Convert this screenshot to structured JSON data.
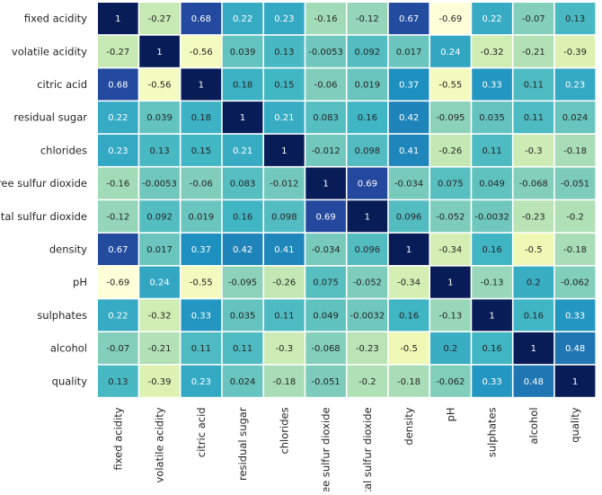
{
  "chart_data": {
    "type": "heatmap",
    "title": "",
    "xlabel": "",
    "ylabel": "",
    "colormap": "YlGnBu",
    "vmin": -0.69,
    "vmax": 1,
    "colorbar": false,
    "grid": false,
    "categories": [
      "fixed acidity",
      "volatile acidity",
      "citric acid",
      "residual sugar",
      "chlorides",
      "free sulfur dioxide",
      "total sulfur dioxide",
      "density",
      "pH",
      "sulphates",
      "alcohol",
      "quality"
    ],
    "labels": [
      [
        "1",
        "-0.27",
        "0.68",
        "0.22",
        "0.23",
        "-0.16",
        "-0.12",
        "0.67",
        "-0.69",
        "0.22",
        "-0.07",
        "0.13"
      ],
      [
        "-0.27",
        "1",
        "-0.56",
        "0.039",
        "0.13",
        "-0.0053",
        "0.092",
        "0.017",
        "0.24",
        "-0.32",
        "-0.21",
        "-0.39"
      ],
      [
        "0.68",
        "-0.56",
        "1",
        "0.18",
        "0.15",
        "-0.06",
        "0.019",
        "0.37",
        "-0.55",
        "0.33",
        "0.11",
        "0.23"
      ],
      [
        "0.22",
        "0.039",
        "0.18",
        "1",
        "0.21",
        "0.083",
        "0.16",
        "0.42",
        "-0.095",
        "0.035",
        "0.11",
        "0.024"
      ],
      [
        "0.23",
        "0.13",
        "0.15",
        "0.21",
        "1",
        "-0.012",
        "0.098",
        "0.41",
        "-0.26",
        "0.11",
        "-0.3",
        "-0.18"
      ],
      [
        "-0.16",
        "-0.0053",
        "-0.06",
        "0.083",
        "-0.012",
        "1",
        "0.69",
        "-0.034",
        "0.075",
        "0.049",
        "-0.068",
        "-0.051"
      ],
      [
        "-0.12",
        "0.092",
        "0.019",
        "0.16",
        "0.098",
        "0.69",
        "1",
        "0.096",
        "-0.052",
        "-0.0032",
        "-0.23",
        "-0.2"
      ],
      [
        "0.67",
        "0.017",
        "0.37",
        "0.42",
        "0.41",
        "-0.034",
        "0.096",
        "1",
        "-0.34",
        "0.16",
        "-0.5",
        "-0.18"
      ],
      [
        "-0.69",
        "0.24",
        "-0.55",
        "-0.095",
        "-0.26",
        "0.075",
        "-0.052",
        "-0.34",
        "1",
        "-0.13",
        "0.2",
        "-0.062"
      ],
      [
        "0.22",
        "-0.32",
        "0.33",
        "0.035",
        "0.11",
        "0.049",
        "-0.0032",
        "0.16",
        "-0.13",
        "1",
        "0.16",
        "0.33"
      ],
      [
        "-0.07",
        "-0.21",
        "0.11",
        "0.11",
        "-0.3",
        "-0.068",
        "-0.23",
        "-0.5",
        "0.2",
        "0.16",
        "1",
        "0.48"
      ],
      [
        "0.13",
        "-0.39",
        "0.23",
        "0.024",
        "-0.18",
        "-0.051",
        "-0.2",
        "-0.18",
        "-0.062",
        "0.33",
        "0.48",
        "1"
      ]
    ]
  }
}
